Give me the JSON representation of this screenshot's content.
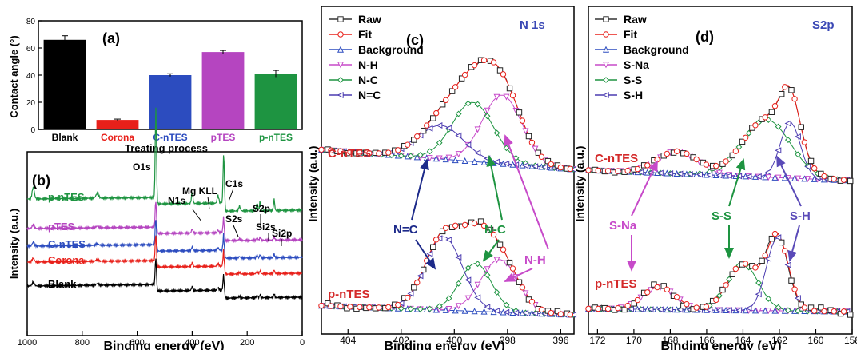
{
  "panel_a": {
    "label": "(a)",
    "ylabel": "Contact angle (°)",
    "xlabel": "Treating process",
    "ylim": [
      0,
      80
    ],
    "yticks": [
      "0",
      "20",
      "40",
      "60",
      "80"
    ],
    "bars": [
      {
        "label": "Blank",
        "value": 66,
        "err": 3,
        "color": "#000000"
      },
      {
        "label": "Corona",
        "value": 7,
        "err": 0.6,
        "color": "#e8201a"
      },
      {
        "label": "C-nTES",
        "value": 40,
        "err": 1,
        "color": "#2c4cbf"
      },
      {
        "label": "pTES",
        "value": 57,
        "err": 1.2,
        "color": "#b545c0"
      },
      {
        "label": "p-nTES",
        "value": 41,
        "err": 2.5,
        "color": "#1e9441"
      }
    ]
  },
  "panel_b": {
    "label": "(b)",
    "ylabel": "Intensity (a.u.)",
    "xlabel": "Binding energy (eV)",
    "xticks": [
      "1000",
      "800",
      "600",
      "400",
      "200",
      "0"
    ],
    "spectra": [
      {
        "label": "p-nTES",
        "color": "#1e9441"
      },
      {
        "label": "pTES",
        "color": "#b545c0"
      },
      {
        "label": "C-nTES",
        "color": "#2c4cbf"
      },
      {
        "label": "Corona",
        "color": "#e8201a"
      },
      {
        "label": "Blank",
        "color": "#000000"
      }
    ],
    "peaks": [
      "O1s",
      "N1s",
      "Mg KLL",
      "C1s",
      "S2s",
      "S2p",
      "Si2s",
      "Si2p"
    ]
  },
  "panel_c": {
    "label": "(c)",
    "title": "N 1s",
    "ylabel": "Intensity (a.u.)",
    "xlabel": "Binding energy (eV)",
    "xticks": [
      "404",
      "402",
      "400",
      "398",
      "396"
    ],
    "legend": [
      "Raw",
      "Fit",
      "Background",
      "N-H",
      "N-C",
      "N=C"
    ],
    "samples": [
      "C-nTES",
      "p-nTES"
    ],
    "annotations": [
      "N=C",
      "N-C",
      "N-H"
    ]
  },
  "panel_d": {
    "label": "(d)",
    "title": "S2p",
    "ylabel": "Intensity (a.u.)",
    "xlabel": "Binding energy (eV)",
    "xticks": [
      "172",
      "170",
      "168",
      "166",
      "164",
      "162",
      "160",
      "158"
    ],
    "legend": [
      "Raw",
      "Fit",
      "Background",
      "S-Na",
      "S-S",
      "S-H"
    ],
    "samples": [
      "C-nTES",
      "p-nTES"
    ],
    "annotations": [
      "S-Na",
      "S-S",
      "S-H"
    ]
  },
  "chart_data": [
    {
      "type": "bar",
      "categories": [
        "Blank",
        "Corona",
        "C-nTES",
        "pTES",
        "p-nTES"
      ],
      "values": [
        66,
        7,
        40,
        57,
        41
      ],
      "errors": [
        3,
        0.6,
        1,
        1.2,
        2.5
      ],
      "xlabel": "Treating process",
      "ylabel": "Contact angle (°)",
      "ylim": [
        0,
        80
      ]
    },
    {
      "type": "line",
      "xlabel": "Binding energy (eV)",
      "ylabel": "Intensity (a.u.)",
      "xlim": [
        1000,
        0
      ],
      "series": [
        {
          "name": "p-nTES"
        },
        {
          "name": "pTES"
        },
        {
          "name": "C-nTES"
        },
        {
          "name": "Corona"
        },
        {
          "name": "Blank"
        }
      ],
      "peak_positions_eV": {
        "O1s": 532,
        "N1s": 400,
        "Mg KLL": 306,
        "C1s": 285,
        "S2s": 228,
        "S2p": 164,
        "Si2s": 153,
        "Si2p": 102
      }
    },
    {
      "type": "line",
      "title": "N 1s",
      "xlabel": "Binding energy (eV)",
      "ylabel": "Intensity (a.u.)",
      "xlim": [
        405,
        395.5
      ],
      "components": [
        {
          "name": "N-H",
          "center": 398.2
        },
        {
          "name": "N-C",
          "center": 399.2
        },
        {
          "name": "N=C",
          "center": 400.5
        }
      ],
      "series": [
        {
          "name": "Raw"
        },
        {
          "name": "Fit"
        },
        {
          "name": "Background"
        },
        {
          "name": "N-H"
        },
        {
          "name": "N-C"
        },
        {
          "name": "N=C"
        }
      ]
    },
    {
      "type": "line",
      "title": "S2p",
      "xlabel": "Binding energy (eV)",
      "ylabel": "Intensity (a.u.)",
      "xlim": [
        172.5,
        158
      ],
      "components": [
        {
          "name": "S-Na",
          "center": 168.3
        },
        {
          "name": "S-S",
          "center": 163.5
        },
        {
          "name": "S-H",
          "center": 161.9
        }
      ],
      "series": [
        {
          "name": "Raw"
        },
        {
          "name": "Fit"
        },
        {
          "name": "Background"
        },
        {
          "name": "S-Na"
        },
        {
          "name": "S-S"
        },
        {
          "name": "S-H"
        }
      ]
    }
  ]
}
